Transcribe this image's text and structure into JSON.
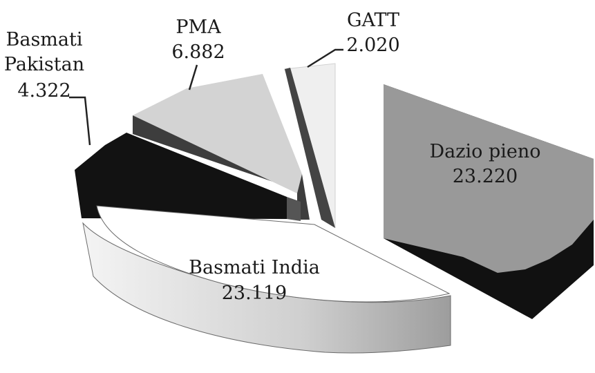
{
  "chart_data": {
    "type": "pie",
    "style": "3d-exploded",
    "title": "",
    "legend": "none",
    "slices": [
      {
        "name": "Dazio pieno",
        "value_label": "23.220",
        "value": 23.22,
        "color": "#9a9a9a"
      },
      {
        "name": "Basmati India",
        "value_label": "23.119",
        "value": 23.119,
        "color": "#ffffff"
      },
      {
        "name": "Basmati Pakistan",
        "name_lines": [
          "Basmati",
          "Pakistan"
        ],
        "value_label": "4.322",
        "value": 4.322,
        "color": "#111111"
      },
      {
        "name": "PMA",
        "value_label": "6.882",
        "value": 6.882,
        "color": "#d4d4d4"
      },
      {
        "name": "GATT",
        "value_label": "2.020",
        "value": 2.02,
        "color": "#f2f2f2"
      }
    ]
  }
}
